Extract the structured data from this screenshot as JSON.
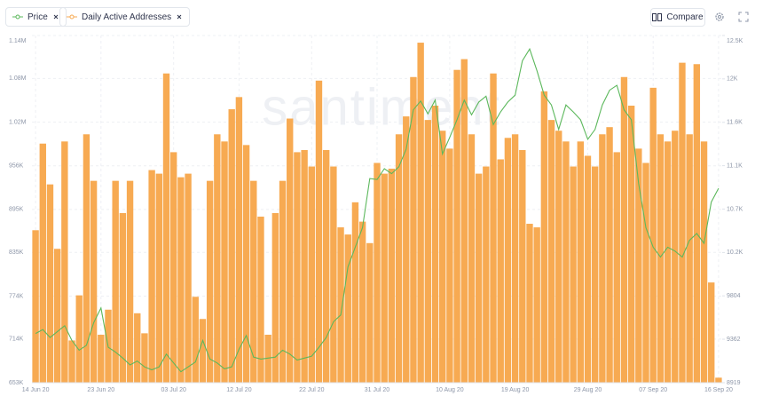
{
  "toolbar": {
    "compare": "Compare"
  },
  "chart_data": {
    "type": "bar",
    "watermark": "santiment",
    "categories": [
      "14 Jun 20",
      null,
      null,
      null,
      null,
      null,
      null,
      null,
      null,
      "23 Jun 20",
      null,
      null,
      null,
      null,
      null,
      null,
      null,
      null,
      null,
      "03 Jul 20",
      null,
      null,
      null,
      null,
      null,
      null,
      null,
      null,
      "12 Jul 20",
      null,
      null,
      null,
      null,
      null,
      null,
      null,
      null,
      null,
      "22 Jul 20",
      null,
      null,
      null,
      null,
      null,
      null,
      null,
      null,
      "31 Jul 20",
      null,
      null,
      null,
      null,
      null,
      null,
      null,
      null,
      null,
      "10 Aug 20",
      null,
      null,
      null,
      null,
      null,
      null,
      null,
      null,
      "19 Aug 20",
      null,
      null,
      null,
      null,
      null,
      null,
      null,
      null,
      null,
      "29 Aug 20",
      null,
      null,
      null,
      null,
      null,
      null,
      null,
      null,
      "07 Sep 20",
      null,
      null,
      null,
      null,
      null,
      null,
      null,
      null,
      "16 Sep 20"
    ],
    "series": [
      {
        "name": "Price",
        "type": "line",
        "axis": "y2",
        "color": "#5cb85c",
        "values": [
          9420,
          9460,
          9380,
          9440,
          9500,
          9350,
          9250,
          9300,
          9530,
          9680,
          9280,
          9230,
          9170,
          9100,
          9140,
          9080,
          9050,
          9080,
          9210,
          9120,
          9030,
          9080,
          9130,
          9350,
          9160,
          9120,
          9060,
          9080,
          9260,
          9400,
          9180,
          9160,
          9170,
          9180,
          9250,
          9210,
          9150,
          9170,
          9190,
          9280,
          9380,
          9540,
          9610,
          10100,
          10300,
          10500,
          11000,
          10990,
          11100,
          11050,
          11120,
          11300,
          11700,
          11790,
          11660,
          11800,
          11250,
          11420,
          11600,
          11800,
          11650,
          11780,
          11840,
          11550,
          11680,
          11780,
          11850,
          12200,
          12320,
          12100,
          11850,
          11750,
          11500,
          11750,
          11680,
          11600,
          11400,
          11500,
          11750,
          11900,
          11950,
          11700,
          11600,
          10950,
          10500,
          10300,
          10200,
          10300,
          10260,
          10200,
          10370,
          10440,
          10340,
          10760,
          10900
        ]
      },
      {
        "name": "Daily Active Addresses",
        "type": "bar",
        "color": "#f7aa52",
        "values": [
          866000,
          987000,
          930000,
          840000,
          990000,
          712000,
          775000,
          1000000,
          935000,
          720000,
          755000,
          935000,
          890000,
          935000,
          750000,
          722000,
          950000,
          945000,
          1085000,
          975000,
          940000,
          945000,
          773000,
          742000,
          935000,
          1000000,
          990000,
          1035000,
          1052000,
          985000,
          935000,
          885000,
          720000,
          890000,
          935000,
          1022000,
          975000,
          978000,
          955000,
          1075000,
          978000,
          955000,
          870000,
          860000,
          905000,
          878000,
          848000,
          960000,
          945000,
          952000,
          1000000,
          1025000,
          1080000,
          1128000,
          1020000,
          1040000,
          1005000,
          980000,
          1090000,
          1105000,
          1000000,
          945000,
          955000,
          1085000,
          965000,
          995000,
          1000000,
          978000,
          875000,
          870000,
          1060000,
          1020000,
          1005000,
          990000,
          955000,
          990000,
          970000,
          955000,
          1000000,
          1010000,
          975000,
          1080000,
          1040000,
          980000,
          960000,
          1065000,
          1000000,
          990000,
          1005000,
          1100000,
          1000000,
          1098000,
          990000,
          793000,
          660000
        ]
      }
    ],
    "ylim": [
      653000,
      1138000
    ],
    "yticks": [
      {
        "value": 653000,
        "label": "653K"
      },
      {
        "value": 714000,
        "label": "714K"
      },
      {
        "value": 774000,
        "label": "774K"
      },
      {
        "value": 835000,
        "label": "835K"
      },
      {
        "value": 895000,
        "label": "895K"
      },
      {
        "value": 956000,
        "label": "956K"
      },
      {
        "value": 1017000,
        "label": "1.02M"
      },
      {
        "value": 1078000,
        "label": "1.08M"
      },
      {
        "value": 1138000,
        "label": "1.14M"
      }
    ],
    "y2lim": [
      8919,
      12458
    ],
    "y2ticks": [
      8919,
      9362,
      9804,
      {
        "value": 10246,
        "label": "10.2K"
      },
      {
        "value": 10689,
        "label": "10.7K"
      },
      {
        "value": 11131,
        "label": "11.1K"
      },
      {
        "value": 11573,
        "label": "11.6K"
      },
      {
        "value": 12016,
        "label": "12K"
      },
      {
        "value": 12458,
        "label": "12.5K"
      }
    ],
    "grid": true
  }
}
